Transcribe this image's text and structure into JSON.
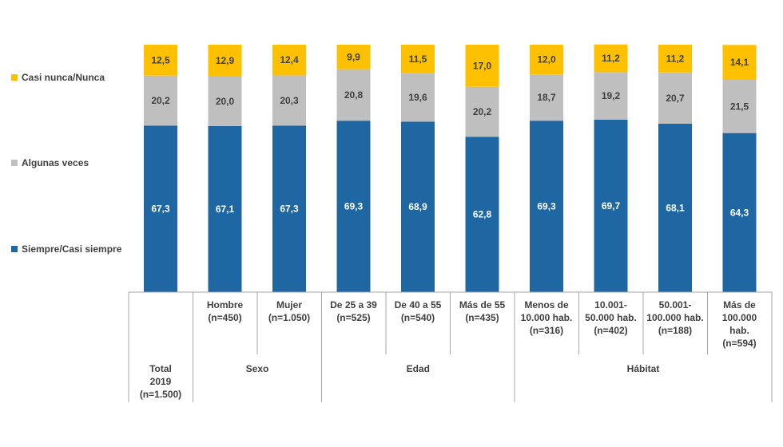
{
  "chart_data": {
    "type": "bar",
    "stacked": true,
    "percent_stacked": true,
    "ylim": [
      0,
      100
    ],
    "categories": [
      {
        "lines": [
          "Total",
          "2019",
          "(n=1.500)"
        ],
        "group": "Total"
      },
      {
        "lines": [
          "Hombre",
          "(n=450)"
        ],
        "group": "Sexo"
      },
      {
        "lines": [
          "Mujer",
          "(n=1.050)"
        ],
        "group": "Sexo"
      },
      {
        "lines": [
          "De 25 a 39",
          "(n=525)"
        ],
        "group": "Edad"
      },
      {
        "lines": [
          "De 40 a 55",
          "(n=540)"
        ],
        "group": "Edad"
      },
      {
        "lines": [
          "Más de 55",
          "(n=435)"
        ],
        "group": "Edad"
      },
      {
        "lines": [
          "Menos de",
          "10.000 hab.",
          "(n=316)"
        ],
        "group": "Hábitat"
      },
      {
        "lines": [
          "10.001-",
          "50.000 hab.",
          "(n=402)"
        ],
        "group": "Hábitat"
      },
      {
        "lines": [
          "50.001-",
          "100.000 hab.",
          "(n=188)"
        ],
        "group": "Hábitat"
      },
      {
        "lines": [
          "Más de",
          "100.000",
          "hab.",
          "(n=594)"
        ],
        "group": "Hábitat"
      }
    ],
    "groups": [
      {
        "label": "Sexo",
        "from": 1,
        "to": 2
      },
      {
        "label": "Edad",
        "from": 3,
        "to": 5
      },
      {
        "label": "Hábitat",
        "from": 6,
        "to": 9
      }
    ],
    "series": [
      {
        "name": "Siempre/Casi siempre",
        "color": "#1f67a3",
        "label_color": "#ffffff",
        "values": [
          67.3,
          67.1,
          67.3,
          69.3,
          68.9,
          62.8,
          69.3,
          69.7,
          68.1,
          64.3
        ],
        "labels": [
          "67,3",
          "67,1",
          "67,3",
          "69,3",
          "68,9",
          "62,8",
          "69,3",
          "69,7",
          "68,1",
          "64,3"
        ]
      },
      {
        "name": "Algunas veces",
        "color": "#bfbfbf",
        "label_color": "#404040",
        "values": [
          20.2,
          20.0,
          20.3,
          20.8,
          19.6,
          20.2,
          18.7,
          19.2,
          20.7,
          21.5
        ],
        "labels": [
          "20,2",
          "20,0",
          "20,3",
          "20,8",
          "19,6",
          "20,2",
          "18,7",
          "19,2",
          "20,7",
          "21,5"
        ]
      },
      {
        "name": "Casi nunca/Nunca",
        "color": "#ffc000",
        "label_color": "#404040",
        "values": [
          12.5,
          12.9,
          12.4,
          9.9,
          11.5,
          17.0,
          12.0,
          11.2,
          11.2,
          14.1
        ],
        "labels": [
          "12,5",
          "12,9",
          "12,4",
          "9,9",
          "11,5",
          "17,0",
          "12,0",
          "11,2",
          "11,2",
          "14,1"
        ]
      }
    ],
    "legend": {
      "position": "left"
    },
    "title": "",
    "xlabel": "",
    "ylabel": ""
  }
}
